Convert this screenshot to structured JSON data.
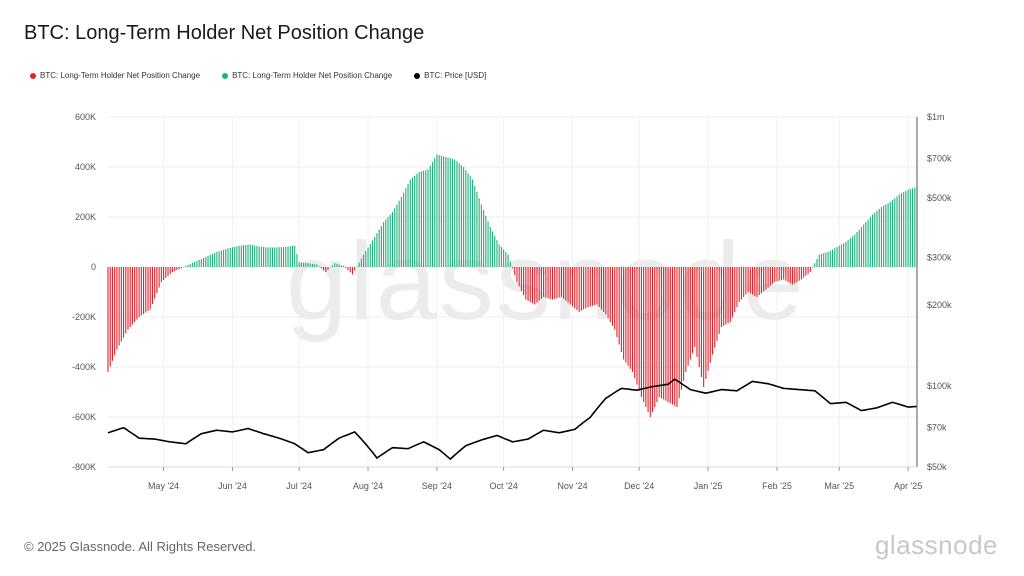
{
  "title": "BTC: Long-Term Holder Net Position Change",
  "legend": [
    {
      "label": "BTC: Long-Term Holder Net Position Change",
      "color": "#e8202a"
    },
    {
      "label": "BTC: Long-Term Holder Net Position Change",
      "color": "#1fb07a"
    },
    {
      "label": "BTC: Price [USD]",
      "color": "#000000"
    }
  ],
  "footer": "© 2025 Glassnode. All Rights Reserved.",
  "brand": "glassnode",
  "watermark": "glassnode",
  "chart_data": {
    "type": "bar",
    "title": "BTC: Long-Term Holder Net Position Change",
    "x_range": [
      "2024-04-06",
      "2025-04-05"
    ],
    "x_ticks": [
      "May '24",
      "Jun '24",
      "Jul '24",
      "Aug '24",
      "Sep '24",
      "Oct '24",
      "Nov '24",
      "Dec '24",
      "Jan '25",
      "Feb '25",
      "Mar '25",
      "Apr '25"
    ],
    "y_left": {
      "ticks": [
        "600K",
        "400K",
        "200K",
        "0",
        "-200K",
        "-400K",
        "-600K",
        "-800K"
      ],
      "range": [
        -800000,
        600000
      ]
    },
    "y_right": {
      "ticks": [
        "$1m",
        "$700k",
        "$500k",
        "$300k",
        "$200k",
        "$100k",
        "$70k",
        "$50k"
      ],
      "scale": "log",
      "range": [
        50000,
        1000000
      ]
    },
    "grid": true,
    "legend_position": "top-left",
    "colors": {
      "negative": "#e8202a",
      "positive": "#1fb07a",
      "price": "#000000"
    },
    "series": [
      {
        "name": "BTC: Long-Term Holder Net Position Change",
        "unit": "BTC",
        "points": [
          [
            "2024-04-06",
            -420000
          ],
          [
            "2024-04-10",
            -330000
          ],
          [
            "2024-04-15",
            -250000
          ],
          [
            "2024-04-20",
            -200000
          ],
          [
            "2024-04-25",
            -170000
          ],
          [
            "2024-04-30",
            -60000
          ],
          [
            "2024-05-05",
            -20000
          ],
          [
            "2024-05-10",
            0
          ],
          [
            "2024-05-15",
            20000
          ],
          [
            "2024-05-20",
            40000
          ],
          [
            "2024-05-25",
            60000
          ],
          [
            "2024-05-30",
            75000
          ],
          [
            "2024-06-04",
            85000
          ],
          [
            "2024-06-09",
            90000
          ],
          [
            "2024-06-14",
            80000
          ],
          [
            "2024-06-19",
            78000
          ],
          [
            "2024-06-24",
            80000
          ],
          [
            "2024-06-29",
            85000
          ],
          [
            "2024-07-01",
            20000
          ],
          [
            "2024-07-05",
            15000
          ],
          [
            "2024-07-09",
            10000
          ],
          [
            "2024-07-13",
            -20000
          ],
          [
            "2024-07-17",
            15000
          ],
          [
            "2024-07-21",
            5000
          ],
          [
            "2024-07-25",
            -30000
          ],
          [
            "2024-07-30",
            50000
          ],
          [
            "2024-08-04",
            120000
          ],
          [
            "2024-08-08",
            180000
          ],
          [
            "2024-08-12",
            220000
          ],
          [
            "2024-08-16",
            280000
          ],
          [
            "2024-08-20",
            350000
          ],
          [
            "2024-08-24",
            380000
          ],
          [
            "2024-08-28",
            390000
          ],
          [
            "2024-09-01",
            450000
          ],
          [
            "2024-09-05",
            440000
          ],
          [
            "2024-09-09",
            430000
          ],
          [
            "2024-09-13",
            400000
          ],
          [
            "2024-09-17",
            350000
          ],
          [
            "2024-09-21",
            250000
          ],
          [
            "2024-09-25",
            160000
          ],
          [
            "2024-09-29",
            90000
          ],
          [
            "2024-10-03",
            50000
          ],
          [
            "2024-10-07",
            -60000
          ],
          [
            "2024-10-11",
            -130000
          ],
          [
            "2024-10-15",
            -150000
          ],
          [
            "2024-10-19",
            -120000
          ],
          [
            "2024-10-23",
            -130000
          ],
          [
            "2024-10-27",
            -120000
          ],
          [
            "2024-10-31",
            -150000
          ],
          [
            "2024-11-04",
            -180000
          ],
          [
            "2024-11-08",
            -160000
          ],
          [
            "2024-11-12",
            -150000
          ],
          [
            "2024-11-16",
            -190000
          ],
          [
            "2024-11-20",
            -250000
          ],
          [
            "2024-11-24",
            -370000
          ],
          [
            "2024-11-28",
            -420000
          ],
          [
            "2024-12-02",
            -520000
          ],
          [
            "2024-12-06",
            -600000
          ],
          [
            "2024-12-10",
            -520000
          ],
          [
            "2024-12-14",
            -540000
          ],
          [
            "2024-12-18",
            -560000
          ],
          [
            "2024-12-22",
            -420000
          ],
          [
            "2024-12-26",
            -320000
          ],
          [
            "2024-12-30",
            -480000
          ],
          [
            "2025-01-03",
            -350000
          ],
          [
            "2025-01-07",
            -240000
          ],
          [
            "2025-01-11",
            -220000
          ],
          [
            "2025-01-15",
            -140000
          ],
          [
            "2025-01-19",
            -100000
          ],
          [
            "2025-01-23",
            -120000
          ],
          [
            "2025-01-27",
            -90000
          ],
          [
            "2025-01-31",
            -60000
          ],
          [
            "2025-02-04",
            -50000
          ],
          [
            "2025-02-08",
            -70000
          ],
          [
            "2025-02-12",
            -50000
          ],
          [
            "2025-02-16",
            -20000
          ],
          [
            "2025-02-20",
            50000
          ],
          [
            "2025-02-24",
            60000
          ],
          [
            "2025-02-28",
            80000
          ],
          [
            "2025-03-04",
            100000
          ],
          [
            "2025-03-08",
            130000
          ],
          [
            "2025-03-12",
            170000
          ],
          [
            "2025-03-16",
            210000
          ],
          [
            "2025-03-20",
            240000
          ],
          [
            "2025-03-24",
            260000
          ],
          [
            "2025-03-28",
            290000
          ],
          [
            "2025-04-01",
            310000
          ],
          [
            "2025-04-05",
            320000
          ]
        ]
      },
      {
        "name": "BTC: Price [USD]",
        "unit": "USD",
        "axis": "right",
        "points": [
          [
            "2024-04-06",
            67000
          ],
          [
            "2024-04-13",
            70000
          ],
          [
            "2024-04-20",
            64000
          ],
          [
            "2024-04-27",
            63500
          ],
          [
            "2024-05-04",
            62000
          ],
          [
            "2024-05-11",
            61000
          ],
          [
            "2024-05-18",
            66500
          ],
          [
            "2024-05-25",
            68500
          ],
          [
            "2024-06-01",
            67500
          ],
          [
            "2024-06-08",
            69500
          ],
          [
            "2024-06-15",
            66500
          ],
          [
            "2024-06-22",
            64000
          ],
          [
            "2024-06-29",
            61000
          ],
          [
            "2024-07-05",
            56500
          ],
          [
            "2024-07-12",
            58000
          ],
          [
            "2024-07-19",
            64000
          ],
          [
            "2024-07-26",
            67500
          ],
          [
            "2024-08-05",
            54000
          ],
          [
            "2024-08-12",
            59000
          ],
          [
            "2024-08-19",
            58500
          ],
          [
            "2024-08-26",
            62000
          ],
          [
            "2024-09-02",
            58000
          ],
          [
            "2024-09-07",
            53500
          ],
          [
            "2024-09-14",
            60000
          ],
          [
            "2024-09-21",
            63000
          ],
          [
            "2024-09-28",
            65500
          ],
          [
            "2024-10-05",
            62000
          ],
          [
            "2024-10-12",
            63500
          ],
          [
            "2024-10-19",
            68500
          ],
          [
            "2024-10-26",
            67000
          ],
          [
            "2024-11-02",
            69000
          ],
          [
            "2024-11-09",
            76500
          ],
          [
            "2024-11-16",
            90000
          ],
          [
            "2024-11-23",
            98000
          ],
          [
            "2024-11-30",
            96500
          ],
          [
            "2024-12-07",
            99500
          ],
          [
            "2024-12-14",
            101500
          ],
          [
            "2024-12-17",
            106000
          ],
          [
            "2024-12-24",
            97000
          ],
          [
            "2024-12-31",
            94000
          ],
          [
            "2025-01-07",
            97000
          ],
          [
            "2025-01-14",
            96000
          ],
          [
            "2025-01-21",
            104000
          ],
          [
            "2025-01-28",
            102000
          ],
          [
            "2025-02-04",
            98000
          ],
          [
            "2025-02-11",
            97000
          ],
          [
            "2025-02-18",
            96000
          ],
          [
            "2025-02-25",
            86000
          ],
          [
            "2025-03-04",
            87000
          ],
          [
            "2025-03-11",
            81000
          ],
          [
            "2025-03-18",
            83000
          ],
          [
            "2025-03-25",
            87000
          ],
          [
            "2025-04-01",
            83500
          ],
          [
            "2025-04-05",
            84000
          ]
        ]
      }
    ]
  }
}
